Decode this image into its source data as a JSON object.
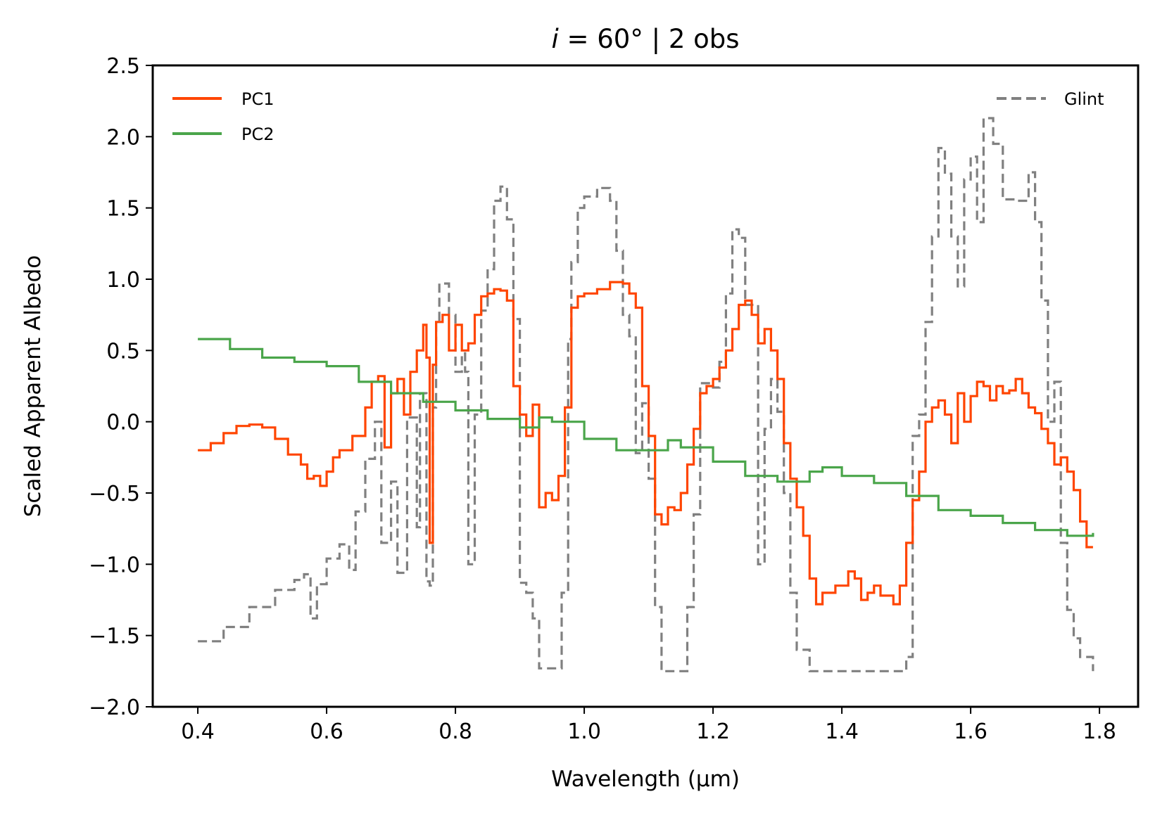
{
  "chart_data": {
    "type": "line",
    "title_italic": "i",
    "title_rest": " = 60° | 2 obs",
    "xlabel": "Wavelength (μm)",
    "ylabel": "Scaled Apparent Albedo",
    "xlim": [
      0.33,
      1.86
    ],
    "ylim": [
      -2.0,
      2.5
    ],
    "xticks": [
      0.4,
      0.6,
      0.8,
      1.0,
      1.2,
      1.4,
      1.6,
      1.8
    ],
    "xtick_labels": [
      "0.4",
      "0.6",
      "0.8",
      "1.0",
      "1.2",
      "1.4",
      "1.6",
      "1.8"
    ],
    "yticks": [
      -2.0,
      -1.5,
      -1.0,
      -0.5,
      0.0,
      0.5,
      1.0,
      1.5,
      2.0,
      2.5
    ],
    "ytick_labels": [
      "−2.0",
      "−1.5",
      "−1.0",
      "−0.5",
      "0.0",
      "0.5",
      "1.0",
      "1.5",
      "2.0",
      "2.5"
    ],
    "grid": false,
    "legend_left": [
      {
        "name": "PC1",
        "color": "#ff4500",
        "style": "solid"
      },
      {
        "name": "PC2",
        "color": "#4aa54a",
        "style": "solid"
      }
    ],
    "legend_right": [
      {
        "name": "Glint",
        "color": "#808080",
        "style": "dashed"
      }
    ],
    "series": [
      {
        "name": "Glint",
        "color": "#808080",
        "style": "dashed",
        "points": [
          [
            0.4,
            -1.54
          ],
          [
            0.44,
            -1.44
          ],
          [
            0.48,
            -1.3
          ],
          [
            0.52,
            -1.18
          ],
          [
            0.55,
            -1.11
          ],
          [
            0.565,
            -1.07
          ],
          [
            0.575,
            -1.38
          ],
          [
            0.585,
            -1.14
          ],
          [
            0.6,
            -0.96
          ],
          [
            0.62,
            -0.86
          ],
          [
            0.635,
            -1.04
          ],
          [
            0.645,
            -0.63
          ],
          [
            0.66,
            -0.26
          ],
          [
            0.675,
            0.0
          ],
          [
            0.685,
            -0.85
          ],
          [
            0.7,
            -0.42
          ],
          [
            0.71,
            -1.06
          ],
          [
            0.725,
            0.03
          ],
          [
            0.74,
            -0.74
          ],
          [
            0.745,
            0.2
          ],
          [
            0.755,
            -1.12
          ],
          [
            0.76,
            -1.15
          ],
          [
            0.765,
            0.1
          ],
          [
            0.77,
            0.7
          ],
          [
            0.775,
            0.97
          ],
          [
            0.79,
            0.75
          ],
          [
            0.8,
            0.35
          ],
          [
            0.81,
            0.48
          ],
          [
            0.815,
            0.35
          ],
          [
            0.82,
            -1.0
          ],
          [
            0.83,
            0.05
          ],
          [
            0.84,
            0.78
          ],
          [
            0.85,
            1.07
          ],
          [
            0.86,
            1.55
          ],
          [
            0.87,
            1.65
          ],
          [
            0.88,
            1.42
          ],
          [
            0.89,
            0.72
          ],
          [
            0.9,
            -1.13
          ],
          [
            0.91,
            -1.2
          ],
          [
            0.92,
            -1.38
          ],
          [
            0.93,
            -1.73
          ],
          [
            0.95,
            -1.73
          ],
          [
            0.965,
            -1.2
          ],
          [
            0.975,
            0.58
          ],
          [
            0.98,
            1.12
          ],
          [
            0.99,
            1.5
          ],
          [
            1.0,
            1.58
          ],
          [
            1.02,
            1.64
          ],
          [
            1.04,
            1.55
          ],
          [
            1.05,
            1.2
          ],
          [
            1.06,
            0.75
          ],
          [
            1.07,
            0.6
          ],
          [
            1.08,
            -0.22
          ],
          [
            1.09,
            0.13
          ],
          [
            1.1,
            -0.4
          ],
          [
            1.11,
            -1.3
          ],
          [
            1.12,
            -1.75
          ],
          [
            1.15,
            -1.75
          ],
          [
            1.16,
            -1.3
          ],
          [
            1.17,
            -0.65
          ],
          [
            1.18,
            0.27
          ],
          [
            1.2,
            0.24
          ],
          [
            1.21,
            0.42
          ],
          [
            1.22,
            0.9
          ],
          [
            1.23,
            1.35
          ],
          [
            1.24,
            1.29
          ],
          [
            1.25,
            0.82
          ],
          [
            1.27,
            -1.0
          ],
          [
            1.28,
            -0.05
          ],
          [
            1.29,
            0.3
          ],
          [
            1.3,
            0.07
          ],
          [
            1.31,
            -0.5
          ],
          [
            1.32,
            -1.2
          ],
          [
            1.33,
            -1.6
          ],
          [
            1.35,
            -1.75
          ],
          [
            1.48,
            -1.75
          ],
          [
            1.5,
            -1.65
          ],
          [
            1.51,
            -0.1
          ],
          [
            1.52,
            0.05
          ],
          [
            1.53,
            0.7
          ],
          [
            1.54,
            1.3
          ],
          [
            1.55,
            1.92
          ],
          [
            1.56,
            1.74
          ],
          [
            1.57,
            1.3
          ],
          [
            1.58,
            0.95
          ],
          [
            1.59,
            1.7
          ],
          [
            1.6,
            1.86
          ],
          [
            1.61,
            1.4
          ],
          [
            1.62,
            2.13
          ],
          [
            1.635,
            1.95
          ],
          [
            1.65,
            1.56
          ],
          [
            1.67,
            1.55
          ],
          [
            1.69,
            1.75
          ],
          [
            1.7,
            1.4
          ],
          [
            1.71,
            0.85
          ],
          [
            1.72,
            0.0
          ],
          [
            1.73,
            0.28
          ],
          [
            1.74,
            -0.85
          ],
          [
            1.75,
            -1.32
          ],
          [
            1.76,
            -1.52
          ],
          [
            1.77,
            -1.65
          ],
          [
            1.79,
            -1.75
          ]
        ]
      },
      {
        "name": "PC1",
        "color": "#ff4500",
        "style": "solid",
        "points": [
          [
            0.4,
            -0.2
          ],
          [
            0.42,
            -0.15
          ],
          [
            0.44,
            -0.08
          ],
          [
            0.46,
            -0.03
          ],
          [
            0.48,
            -0.02
          ],
          [
            0.5,
            -0.04
          ],
          [
            0.52,
            -0.12
          ],
          [
            0.54,
            -0.23
          ],
          [
            0.56,
            -0.3
          ],
          [
            0.57,
            -0.4
          ],
          [
            0.58,
            -0.38
          ],
          [
            0.59,
            -0.45
          ],
          [
            0.6,
            -0.35
          ],
          [
            0.61,
            -0.25
          ],
          [
            0.62,
            -0.2
          ],
          [
            0.64,
            -0.1
          ],
          [
            0.66,
            0.1
          ],
          [
            0.67,
            0.28
          ],
          [
            0.68,
            0.32
          ],
          [
            0.69,
            -0.18
          ],
          [
            0.7,
            0.2
          ],
          [
            0.71,
            0.3
          ],
          [
            0.72,
            0.05
          ],
          [
            0.73,
            0.35
          ],
          [
            0.74,
            0.5
          ],
          [
            0.75,
            0.68
          ],
          [
            0.755,
            0.45
          ],
          [
            0.76,
            -0.85
          ],
          [
            0.765,
            0.4
          ],
          [
            0.77,
            0.7
          ],
          [
            0.78,
            0.75
          ],
          [
            0.79,
            0.5
          ],
          [
            0.8,
            0.68
          ],
          [
            0.81,
            0.5
          ],
          [
            0.82,
            0.55
          ],
          [
            0.83,
            0.75
          ],
          [
            0.84,
            0.88
          ],
          [
            0.85,
            0.9
          ],
          [
            0.86,
            0.93
          ],
          [
            0.87,
            0.92
          ],
          [
            0.88,
            0.85
          ],
          [
            0.89,
            0.25
          ],
          [
            0.9,
            0.05
          ],
          [
            0.91,
            -0.1
          ],
          [
            0.92,
            0.12
          ],
          [
            0.93,
            -0.6
          ],
          [
            0.94,
            -0.5
          ],
          [
            0.95,
            -0.55
          ],
          [
            0.96,
            -0.38
          ],
          [
            0.97,
            0.1
          ],
          [
            0.98,
            0.8
          ],
          [
            0.99,
            0.88
          ],
          [
            1.0,
            0.9
          ],
          [
            1.02,
            0.93
          ],
          [
            1.04,
            0.98
          ],
          [
            1.06,
            0.97
          ],
          [
            1.07,
            0.9
          ],
          [
            1.08,
            0.8
          ],
          [
            1.09,
            0.25
          ],
          [
            1.1,
            -0.1
          ],
          [
            1.11,
            -0.65
          ],
          [
            1.12,
            -0.72
          ],
          [
            1.13,
            -0.6
          ],
          [
            1.14,
            -0.62
          ],
          [
            1.15,
            -0.5
          ],
          [
            1.16,
            -0.3
          ],
          [
            1.17,
            -0.05
          ],
          [
            1.18,
            0.2
          ],
          [
            1.19,
            0.25
          ],
          [
            1.2,
            0.3
          ],
          [
            1.21,
            0.38
          ],
          [
            1.22,
            0.5
          ],
          [
            1.23,
            0.65
          ],
          [
            1.24,
            0.82
          ],
          [
            1.25,
            0.85
          ],
          [
            1.26,
            0.75
          ],
          [
            1.27,
            0.55
          ],
          [
            1.28,
            0.65
          ],
          [
            1.29,
            0.5
          ],
          [
            1.3,
            0.3
          ],
          [
            1.31,
            -0.15
          ],
          [
            1.32,
            -0.4
          ],
          [
            1.33,
            -0.6
          ],
          [
            1.34,
            -0.8
          ],
          [
            1.35,
            -1.1
          ],
          [
            1.36,
            -1.28
          ],
          [
            1.37,
            -1.2
          ],
          [
            1.39,
            -1.15
          ],
          [
            1.41,
            -1.05
          ],
          [
            1.42,
            -1.1
          ],
          [
            1.43,
            -1.25
          ],
          [
            1.44,
            -1.2
          ],
          [
            1.45,
            -1.15
          ],
          [
            1.46,
            -1.22
          ],
          [
            1.48,
            -1.28
          ],
          [
            1.49,
            -1.15
          ],
          [
            1.5,
            -0.85
          ],
          [
            1.51,
            -0.55
          ],
          [
            1.52,
            -0.35
          ],
          [
            1.53,
            0.0
          ],
          [
            1.54,
            0.1
          ],
          [
            1.55,
            0.15
          ],
          [
            1.56,
            0.05
          ],
          [
            1.57,
            -0.15
          ],
          [
            1.58,
            0.2
          ],
          [
            1.59,
            0.0
          ],
          [
            1.6,
            0.18
          ],
          [
            1.61,
            0.28
          ],
          [
            1.62,
            0.25
          ],
          [
            1.63,
            0.15
          ],
          [
            1.64,
            0.25
          ],
          [
            1.65,
            0.2
          ],
          [
            1.66,
            0.22
          ],
          [
            1.67,
            0.3
          ],
          [
            1.68,
            0.2
          ],
          [
            1.69,
            0.1
          ],
          [
            1.7,
            0.06
          ],
          [
            1.71,
            -0.05
          ],
          [
            1.72,
            -0.15
          ],
          [
            1.73,
            -0.3
          ],
          [
            1.74,
            -0.25
          ],
          [
            1.75,
            -0.35
          ],
          [
            1.76,
            -0.48
          ],
          [
            1.77,
            -0.7
          ],
          [
            1.78,
            -0.88
          ],
          [
            1.79,
            -0.88
          ]
        ]
      },
      {
        "name": "PC2",
        "color": "#4aa54a",
        "style": "solid",
        "points": [
          [
            0.4,
            0.58
          ],
          [
            0.45,
            0.51
          ],
          [
            0.5,
            0.45
          ],
          [
            0.55,
            0.42
          ],
          [
            0.6,
            0.39
          ],
          [
            0.65,
            0.28
          ],
          [
            0.7,
            0.2
          ],
          [
            0.75,
            0.14
          ],
          [
            0.8,
            0.08
          ],
          [
            0.85,
            0.02
          ],
          [
            0.9,
            -0.04
          ],
          [
            0.93,
            0.03
          ],
          [
            0.95,
            0.0
          ],
          [
            1.0,
            -0.12
          ],
          [
            1.05,
            -0.2
          ],
          [
            1.1,
            -0.2
          ],
          [
            1.13,
            -0.13
          ],
          [
            1.15,
            -0.18
          ],
          [
            1.2,
            -0.28
          ],
          [
            1.25,
            -0.38
          ],
          [
            1.3,
            -0.42
          ],
          [
            1.35,
            -0.35
          ],
          [
            1.37,
            -0.32
          ],
          [
            1.4,
            -0.38
          ],
          [
            1.45,
            -0.43
          ],
          [
            1.5,
            -0.52
          ],
          [
            1.55,
            -0.62
          ],
          [
            1.6,
            -0.66
          ],
          [
            1.65,
            -0.71
          ],
          [
            1.7,
            -0.76
          ],
          [
            1.75,
            -0.8
          ],
          [
            1.79,
            -0.78
          ]
        ]
      }
    ]
  }
}
